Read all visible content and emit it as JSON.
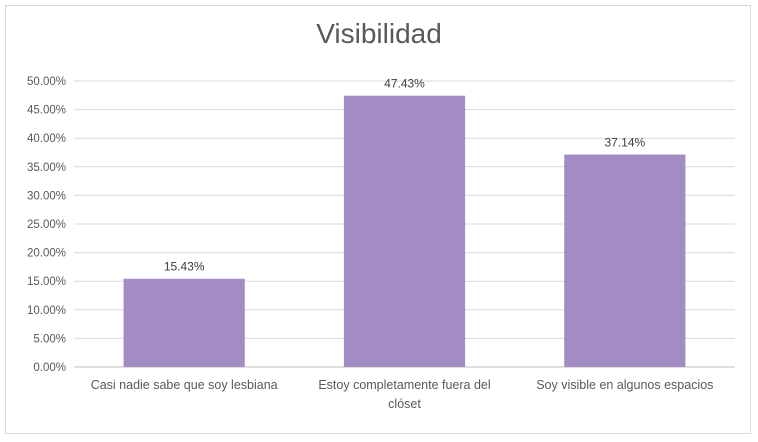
{
  "chart_data": {
    "type": "bar",
    "title": "Visibilidad",
    "categories": [
      [
        "Casi nadie sabe que soy lesbiana"
      ],
      [
        "Estoy completamente fuera del",
        "clóset"
      ],
      [
        "Soy visible en algunos espacios"
      ]
    ],
    "values": [
      15.43,
      47.43,
      37.14
    ],
    "data_labels": [
      "15.43%",
      "47.43%",
      "37.14%"
    ],
    "ylim": [
      0,
      50
    ],
    "y_ticks": [
      "0.00%",
      "5.00%",
      "10.00%",
      "15.00%",
      "20.00%",
      "25.00%",
      "30.00%",
      "35.00%",
      "40.00%",
      "45.00%",
      "50.00%"
    ],
    "grid": true,
    "legend": "none",
    "colors": {
      "bar": "#a38bc4",
      "grid": "#d9d9d9",
      "axis": "#bfbfbf"
    }
  }
}
